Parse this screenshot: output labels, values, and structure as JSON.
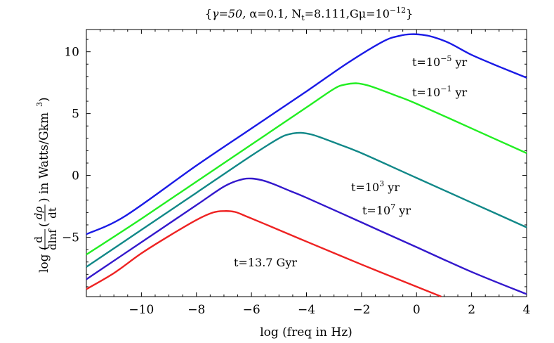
{
  "chart_data": {
    "type": "line",
    "title": "{γ=50, α=0.1, N_t=8.111,Gμ=10^-12}",
    "title_parts": {
      "open": "{",
      "gamma": "γ=50, ",
      "alpha": "α=0.1, N",
      "nt_sub": "t",
      "nt_val": "=8.111,G",
      "mu": "μ=10",
      "exp": "−12",
      "close": "}"
    },
    "xlabel": "log (freq in Hz)",
    "ylabel": "log ( d/dlnf ( dρ/dt ) ) in Watts/Gkm^3",
    "ylabel_parts": {
      "log": "log (",
      "frac1_num": "d",
      "frac1_den": "dlnf",
      "paren": "(",
      "frac2_num": "dρ",
      "frac2_den": "dt",
      "rest": ") in Watts/Gkm",
      "exp": "3",
      "close": ")"
    },
    "xlim": [
      -12,
      4
    ],
    "ylim": [
      -9.8,
      11.8
    ],
    "x_ticks": [
      -10,
      -8,
      -6,
      -4,
      -2,
      0,
      2,
      4
    ],
    "x_tick_labels": [
      "−10",
      "−8",
      "−6",
      "−4",
      "−2",
      "0",
      "2",
      "4"
    ],
    "y_ticks": [
      -5,
      0,
      5,
      10
    ],
    "y_tick_labels": [
      "−5",
      "0",
      "5",
      "10"
    ],
    "grid": false,
    "legend": "none",
    "series": [
      {
        "annotation": "t=10^-5 yr",
        "ann_base": "t=10",
        "ann_exp": "−5",
        "ann_unit": " yr",
        "color": "#1a1ae6",
        "x": [
          -12,
          -10.6,
          -8,
          -6,
          -4,
          -2.5,
          -1.2,
          -0.6,
          -0.2,
          0.2,
          0.6,
          1.2,
          2,
          3,
          4
        ],
        "y": [
          -4.75,
          -3.3,
          0.8,
          3.8,
          6.8,
          9.1,
          10.85,
          11.3,
          11.42,
          11.38,
          11.2,
          10.7,
          9.75,
          8.8,
          7.9
        ]
      },
      {
        "annotation": "t=10^-1 yr",
        "ann_base": "t=10",
        "ann_exp": "−1",
        "ann_unit": " yr",
        "color": "#22ee22",
        "x": [
          -12,
          -10,
          -8,
          -6,
          -4,
          -3,
          -2.6,
          -2.2,
          -1.8,
          -1.4,
          -0.8,
          0,
          2,
          4
        ],
        "y": [
          -6.4,
          -3.5,
          -0.5,
          2.5,
          5.5,
          7.0,
          7.35,
          7.45,
          7.3,
          7.0,
          6.5,
          5.8,
          3.8,
          1.8
        ]
      },
      {
        "annotation": "t=10^3 yr",
        "ann_base": "t=10",
        "ann_exp": "3",
        "ann_unit": " yr",
        "color": "#118888",
        "x": [
          -12,
          -10,
          -8,
          -6,
          -5,
          -4.6,
          -4.2,
          -3.8,
          -3.4,
          -2.8,
          -2,
          0,
          2,
          4
        ],
        "y": [
          -7.4,
          -4.4,
          -1.4,
          1.6,
          3.0,
          3.35,
          3.45,
          3.3,
          3.0,
          2.5,
          1.8,
          -0.2,
          -2.2,
          -4.2
        ]
      },
      {
        "annotation": "t=10^7 yr",
        "ann_base": "t=10",
        "ann_exp": "7",
        "ann_unit": " yr",
        "color": "#3318cc",
        "x": [
          -12,
          -10,
          -8,
          -7,
          -6.4,
          -6.0,
          -5.6,
          -5.2,
          -4.6,
          -4,
          -2,
          0,
          2,
          4
        ],
        "y": [
          -8.4,
          -5.4,
          -2.4,
          -0.9,
          -0.35,
          -0.25,
          -0.4,
          -0.7,
          -1.25,
          -1.8,
          -3.8,
          -5.8,
          -7.8,
          -9.6
        ]
      },
      {
        "annotation": "t=13.7 Gyr",
        "ann_base": "t=13.7 Gyr",
        "ann_exp": "",
        "ann_unit": "",
        "color": "#ee2222",
        "x": [
          -12,
          -11,
          -10,
          -9,
          -8,
          -7.4,
          -7.0,
          -6.6,
          -6.2,
          -5.6,
          -4,
          -2,
          0,
          0.9
        ],
        "y": [
          -9.2,
          -7.9,
          -6.3,
          -4.9,
          -3.6,
          -3.0,
          -2.88,
          -2.95,
          -3.3,
          -3.85,
          -5.35,
          -7.2,
          -9.0,
          -9.8
        ]
      }
    ]
  }
}
